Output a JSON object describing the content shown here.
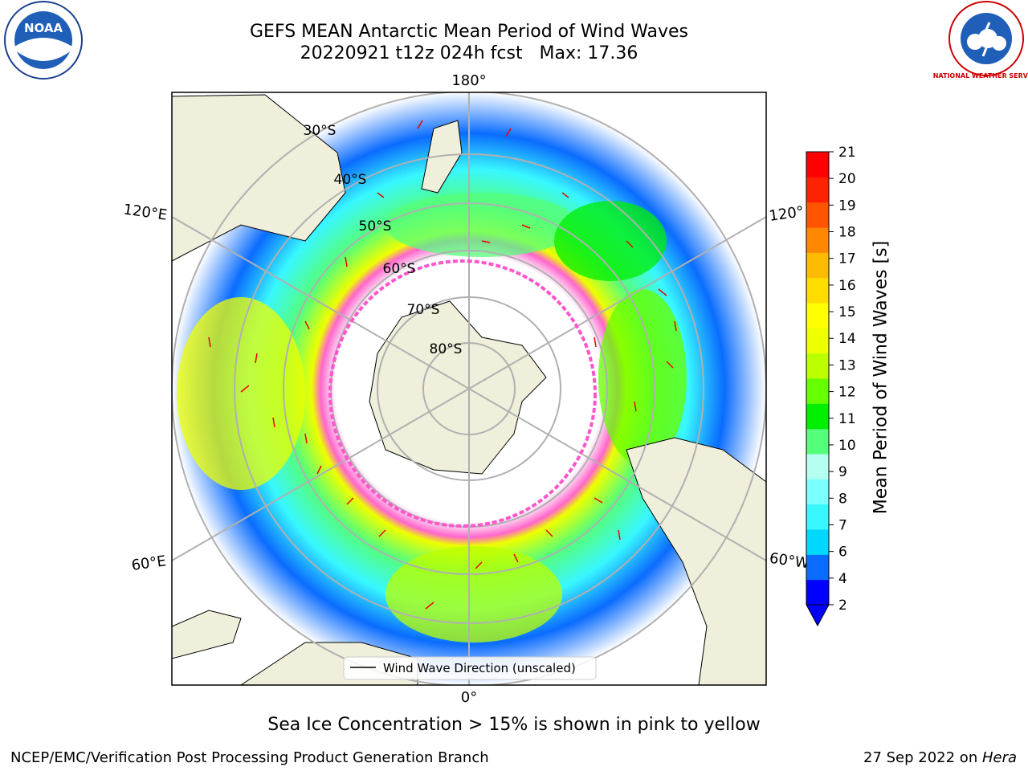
{
  "header": {
    "title_line1": "GEFS MEAN Antarctic Mean Period of Wind Waves",
    "title_line2": "20220921 t12z 024h fcst   Max: 17.36"
  },
  "logos": {
    "noaa_text": "NOAA",
    "nws_text": "NATIONAL WEATHER SERVICE"
  },
  "map": {
    "lon_labels": {
      "top": "180°",
      "bottom": "0°",
      "left_upper": "120°E",
      "left_lower": "60°E",
      "right_upper": "120°",
      "right_lower": "60°W"
    },
    "lat_labels": [
      "30°S",
      "40°S",
      "50°S",
      "60°S",
      "70°S",
      "80°S"
    ],
    "legend_label": "Wind Wave Direction (unscaled)"
  },
  "colorbar": {
    "title": "Mean Period of Wind Waves [s]",
    "ticks": [
      "2",
      "4",
      "6",
      "7",
      "8",
      "9",
      "10",
      "11",
      "12",
      "13",
      "14",
      "15",
      "16",
      "17",
      "18",
      "19",
      "20",
      "21"
    ],
    "colors": [
      "#0000ff",
      "#0a6cff",
      "#00d8ff",
      "#38f7ff",
      "#7affff",
      "#b4fff2",
      "#55ff7a",
      "#00ee00",
      "#66ff00",
      "#bbff00",
      "#eeff00",
      "#ffff00",
      "#ffdd00",
      "#ffbb00",
      "#ff8800",
      "#ff5500",
      "#ff2200",
      "#ff0000"
    ],
    "extend_color": "#0000ff"
  },
  "footer": {
    "subtitle": "Sea Ice Concentration > 15% is shown in pink to yellow",
    "left": "NCEP/EMC/Verification Post Processing Product Generation Branch",
    "right_date": "27 Sep 2022 on ",
    "right_machine": "Hera"
  }
}
